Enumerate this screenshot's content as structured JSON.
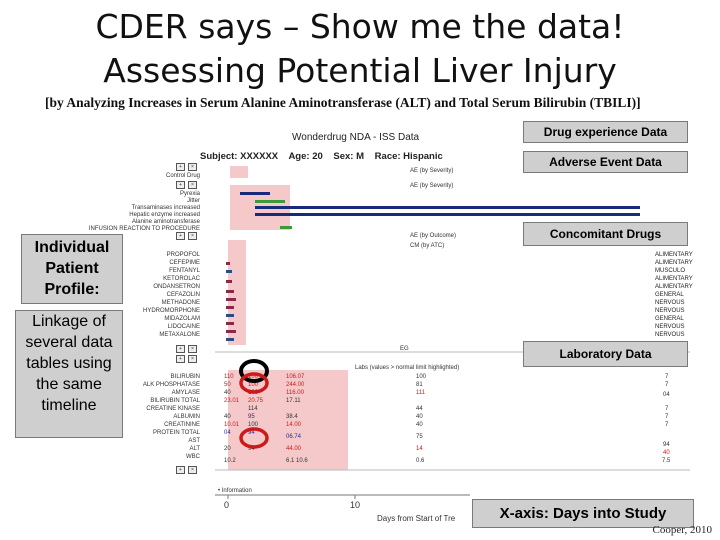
{
  "slide": {
    "title_line1": "CDER says – Show me the data!",
    "title_line2": "Assessing Potential Liver Injury",
    "subtitle": "[by Analyzing Increases in Serum Alanine Aminotransferase (ALT) and Total Serum Bilirubin (TBILI)]",
    "footer": "Cooper, 2010"
  },
  "profile": {
    "chart_title": "Wonderdrug NDA - ISS Data",
    "subject": "Subject: XXXXXX",
    "age": "Age: 20",
    "sex": "Sex: M",
    "race": "Race: Hispanic",
    "row_labels": [
      "Control Drug",
      "Pyrexia",
      "Jitter",
      "Transaminases increased",
      "Hepatic enzyme increased",
      "Alanine aminotransferase",
      "INFUSION REACTION TO PROCEDURE",
      "PROPOFOL",
      "CEFEPIME",
      "FENTANYL",
      "KETOROLAC",
      "ONDANSETRON",
      "CEFAZOLIN",
      "METHADONE",
      "HYDROMORPHONE",
      "MIDAZOLAM",
      "LIDOCAINE",
      "METAXALONE",
      "",
      "",
      "BILIRUBIN",
      "ALK PHOSPHATASE",
      "AMYLASE",
      "BILIRUBIN TOTAL",
      "CREATINE KINASE",
      "ALBUMIN",
      "CREATININE",
      "PROTEIN TOTAL",
      "AST",
      "ALT",
      "WBC"
    ],
    "ae_labels": [
      "AE (by Severity)",
      "AE (by Severity)"
    ],
    "cm_labels": [
      "AE (by Outcome)",
      "CM (by ATC)"
    ],
    "cm_right": [
      "ALIMENTARY",
      "ALIMENTARY",
      "MUSCULO",
      "ALIMENTARY",
      "ALIMENTARY",
      "GENERAL",
      "NERVOUS",
      "NERVOUS",
      "GENERAL",
      "NERVOUS",
      "NERVOUS"
    ],
    "eg_label": "EG",
    "lab_header": "Labs (values > normal limit highlighted)",
    "lab_col1": [
      "110",
      "50",
      "40",
      "23.01",
      "40",
      "10.01",
      "04",
      "20",
      "10.2"
    ],
    "lab_col2": [
      "100",
      "100",
      "100",
      "20.75",
      "114",
      "95",
      "100",
      "94",
      "94"
    ],
    "lab_col3": [
      "106.07",
      "244.00",
      "116.00",
      "17.11",
      "38.4",
      "14.00",
      "06.74",
      "44.00",
      "6.1 10.6"
    ],
    "lab_col4": [
      "100",
      "81",
      "111",
      "44",
      "40",
      "40",
      "75",
      "14",
      "0.6"
    ],
    "lab_col5": [
      "7",
      "7",
      "04",
      "7",
      "7",
      "7",
      "94",
      "40",
      "7.5"
    ],
    "x_ticks": [
      "0",
      "10"
    ],
    "x_axis_partial": "Days from Start of Tre",
    "mini_legend": "• Information"
  },
  "callouts": {
    "drug_experience": "Drug experience Data",
    "adverse_event": "Adverse Event Data",
    "concomitant": "Concomitant Drugs",
    "laboratory": "Laboratory Data",
    "xaxis": "X-axis: Days into Study",
    "individual": "Individual Patient Profile:",
    "linkage": "Linkage of several data tables using the same timeline"
  },
  "colors": {
    "band": "#f5c9c9",
    "ae_bar_dark": "#1a2a7a",
    "ae_bar_green": "#3a9a3a",
    "highlight_red": "#cc1a1a",
    "highlight_black": "#000000",
    "callout_bg": "#cfcfcf"
  }
}
